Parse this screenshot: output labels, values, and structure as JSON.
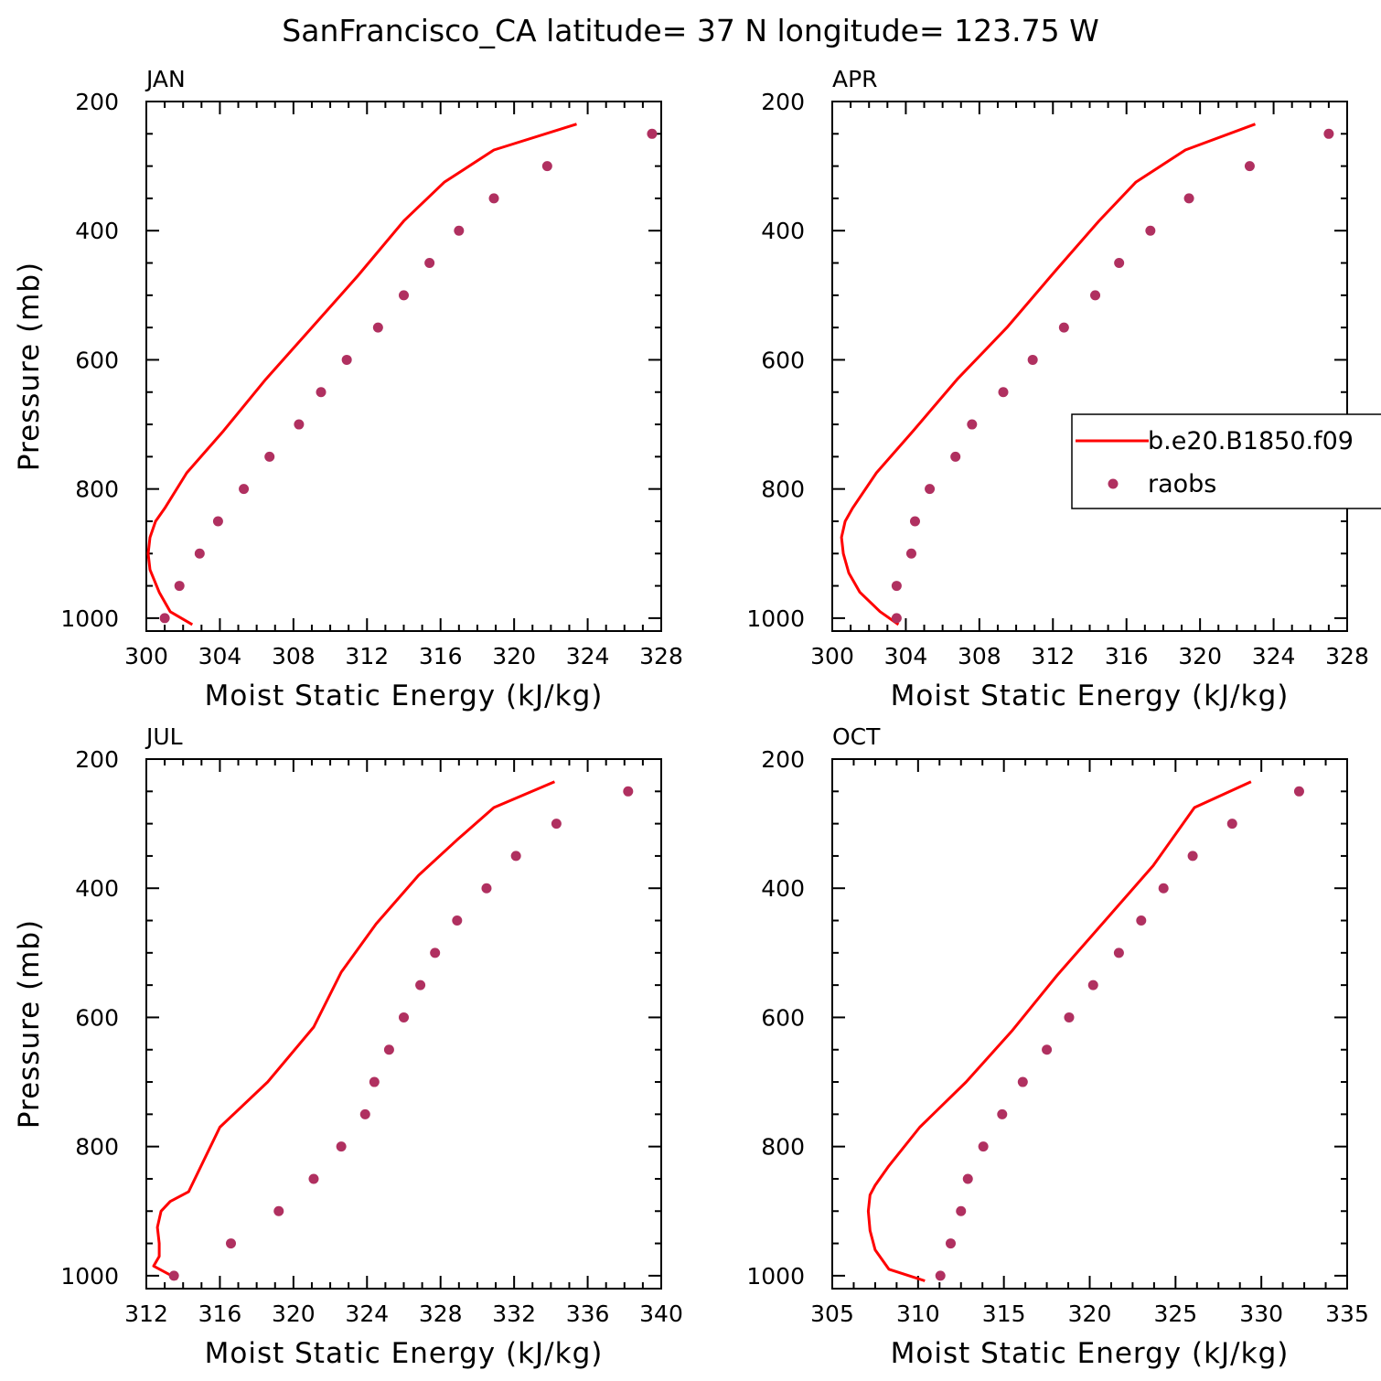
{
  "figure": {
    "title": "SanFrancisco_CA  latitude= 37 N longitude= 123.75 W"
  },
  "legend": {
    "entries": [
      {
        "label": "b.e20.B1850.f09",
        "type": "line",
        "color": "#ff0000"
      },
      {
        "label": "raobs",
        "type": "marker",
        "color": "#b03060"
      }
    ]
  },
  "colors": {
    "model_line": "#ff0000",
    "raobs_marker": "#b03060",
    "axes": "#000000"
  },
  "chart_data": [
    {
      "type": "line",
      "panel": "JAN",
      "xlabel": "Moist Static Energy (kJ/kg)",
      "ylabel": "Pressure (mb)",
      "xlim": [
        300,
        328
      ],
      "ylim": [
        1020,
        200
      ],
      "xticks": [
        300,
        304,
        308,
        312,
        316,
        320,
        324,
        328
      ],
      "yticks": [
        200,
        400,
        600,
        800,
        1000
      ],
      "series": [
        {
          "name": "b.e20.B1850.f09",
          "kind": "line",
          "x": [
            302.5,
            301.3,
            300.7,
            300.2,
            300.1,
            300.2,
            300.5,
            301.0,
            302.2,
            304.2,
            306.5,
            309.0,
            311.5,
            314.0,
            316.2,
            318.9,
            323.4
          ],
          "y": [
            1010,
            990,
            960,
            925,
            900,
            875,
            850,
            830,
            775,
            710,
            630,
            550,
            470,
            385,
            325,
            275,
            235
          ]
        },
        {
          "name": "raobs",
          "kind": "scatter",
          "x": [
            301.0,
            301.8,
            302.9,
            303.9,
            305.3,
            306.7,
            308.3,
            309.5,
            310.9,
            312.6,
            314.0,
            315.4,
            317.0,
            318.9,
            321.8,
            327.5
          ],
          "y": [
            1000,
            950,
            900,
            850,
            800,
            750,
            700,
            650,
            600,
            550,
            500,
            450,
            400,
            350,
            300,
            250
          ]
        }
      ]
    },
    {
      "type": "line",
      "panel": "APR",
      "xlabel": "Moist Static Energy (kJ/kg)",
      "ylabel": "",
      "xlim": [
        300,
        328
      ],
      "ylim": [
        1020,
        200
      ],
      "xticks": [
        300,
        304,
        308,
        312,
        316,
        320,
        324,
        328
      ],
      "yticks": [
        200,
        400,
        600,
        800,
        1000
      ],
      "series": [
        {
          "name": "b.e20.B1850.f09",
          "kind": "line",
          "x": [
            303.6,
            302.6,
            301.5,
            300.9,
            300.6,
            300.5,
            300.7,
            301.1,
            302.4,
            304.4,
            306.8,
            309.5,
            312.2,
            314.5,
            316.5,
            319.2,
            323.0
          ],
          "y": [
            1010,
            990,
            960,
            930,
            900,
            875,
            850,
            830,
            775,
            710,
            630,
            550,
            460,
            385,
            325,
            275,
            235
          ]
        },
        {
          "name": "raobs",
          "kind": "scatter",
          "x": [
            303.5,
            303.5,
            304.3,
            304.5,
            305.3,
            306.7,
            307.6,
            309.3,
            310.9,
            312.6,
            314.3,
            315.6,
            317.3,
            319.4,
            322.7,
            327.0
          ],
          "y": [
            1000,
            950,
            900,
            850,
            800,
            750,
            700,
            650,
            600,
            550,
            500,
            450,
            400,
            350,
            300,
            250
          ]
        }
      ]
    },
    {
      "type": "line",
      "panel": "JUL",
      "xlabel": "Moist Static Energy (kJ/kg)",
      "ylabel": "Pressure (mb)",
      "xlim": [
        312,
        340
      ],
      "ylim": [
        1020,
        200
      ],
      "xticks": [
        312,
        316,
        320,
        324,
        328,
        332,
        336,
        340
      ],
      "yticks": [
        200,
        400,
        600,
        800,
        1000
      ],
      "series": [
        {
          "name": "b.e20.B1850.f09",
          "kind": "line",
          "x": [
            313.7,
            312.4,
            312.7,
            312.7,
            312.6,
            312.8,
            313.3,
            314.3,
            316.0,
            318.6,
            321.1,
            322.6,
            324.5,
            326.8,
            328.9,
            330.9,
            334.2
          ],
          "y": [
            1005,
            985,
            970,
            950,
            925,
            900,
            885,
            870,
            770,
            700,
            615,
            530,
            455,
            380,
            325,
            275,
            235
          ]
        },
        {
          "name": "raobs",
          "kind": "scatter",
          "x": [
            313.5,
            316.6,
            319.2,
            321.1,
            322.6,
            323.9,
            324.4,
            325.2,
            326.0,
            326.9,
            327.7,
            328.9,
            330.5,
            332.1,
            334.3,
            338.2
          ],
          "y": [
            1000,
            950,
            900,
            850,
            800,
            750,
            700,
            650,
            600,
            550,
            500,
            450,
            400,
            350,
            300,
            250
          ]
        }
      ]
    },
    {
      "type": "line",
      "panel": "OCT",
      "xlabel": "Moist Static Energy (kJ/kg)",
      "ylabel": "",
      "xlim": [
        305,
        335
      ],
      "ylim": [
        1020,
        200
      ],
      "xticks": [
        305,
        310,
        315,
        320,
        325,
        330,
        335
      ],
      "yticks": [
        200,
        400,
        600,
        800,
        1000
      ],
      "series": [
        {
          "name": "b.e20.B1850.f09",
          "kind": "line",
          "x": [
            310.4,
            308.3,
            307.5,
            307.2,
            307.1,
            307.2,
            307.5,
            308.3,
            310.1,
            312.8,
            315.5,
            318.1,
            320.9,
            323.7,
            326.1,
            329.4
          ],
          "y": [
            1008,
            990,
            960,
            930,
            900,
            875,
            860,
            830,
            770,
            700,
            620,
            535,
            450,
            365,
            275,
            235
          ]
        },
        {
          "name": "raobs",
          "kind": "scatter",
          "x": [
            311.3,
            311.9,
            312.5,
            312.9,
            313.8,
            314.9,
            316.1,
            317.5,
            318.8,
            320.2,
            321.7,
            323.0,
            324.3,
            326.0,
            328.3,
            332.2
          ],
          "y": [
            1000,
            950,
            900,
            850,
            800,
            750,
            700,
            650,
            600,
            550,
            500,
            450,
            400,
            350,
            300,
            250
          ]
        }
      ]
    }
  ]
}
